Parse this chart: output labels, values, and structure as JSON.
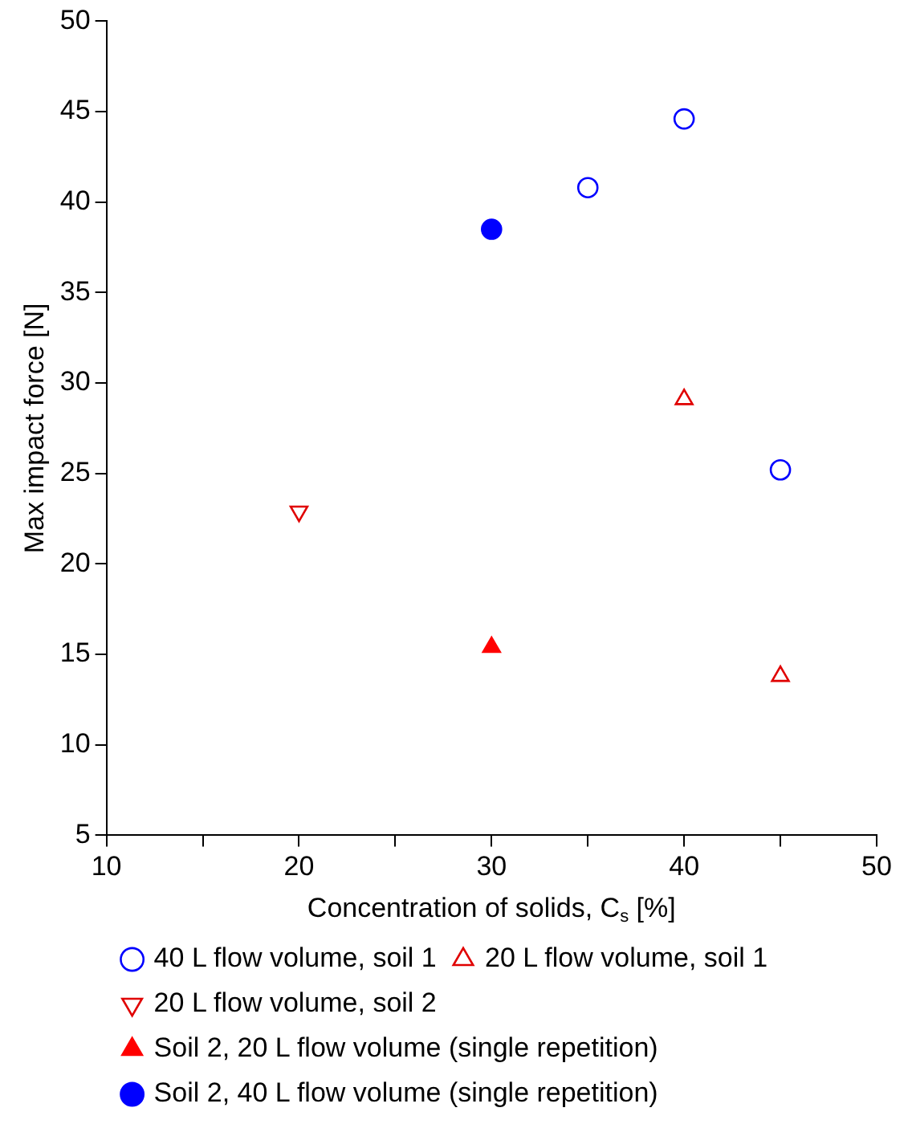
{
  "chart_data": {
    "type": "scatter",
    "xlabel": "Concentration of solids, C$_{s}$ [%]",
    "ylabel": "Max impact force [N]",
    "xlim": [
      10,
      50
    ],
    "xticks": [
      10,
      {
        "value": 15,
        "label": null
      },
      20,
      {
        "value": 25,
        "label": null
      },
      30,
      {
        "value": 35,
        "label": null
      },
      40,
      {
        "value": 45,
        "label": null
      },
      50
    ],
    "ylim": [
      5,
      50
    ],
    "yticks": [
      5,
      10,
      15,
      20,
      25,
      30,
      35,
      40,
      45,
      50
    ],
    "grid": false,
    "legend": "bottom",
    "series": [
      {
        "name": "40 L flow volume, soil 1",
        "color": "#0000ff",
        "marker": "circle-open",
        "x": [
          35,
          40,
          45
        ],
        "values": [
          40.8,
          44.6,
          25.2
        ]
      },
      {
        "name": "20 L flow volume, soil 1",
        "color": "#e00000",
        "marker": "triangle-open",
        "x": [
          40,
          45
        ],
        "values": [
          29.1,
          13.8
        ]
      },
      {
        "name": "20 L flow volume, soil 2",
        "color": "#e00000",
        "marker": "triangle-down-open",
        "x": [
          20
        ],
        "values": [
          22.9
        ]
      },
      {
        "name": "Soil 2, 20 L flow volume (single repetition)",
        "color": "#ff0000",
        "marker": "triangle",
        "x": [
          30
        ],
        "values": [
          15.4
        ]
      },
      {
        "name": "Soil 2, 40 L flow volume (single repetition)",
        "color": "#0000ff",
        "marker": "circle",
        "x": [
          30
        ],
        "values": [
          38.5
        ]
      }
    ]
  }
}
